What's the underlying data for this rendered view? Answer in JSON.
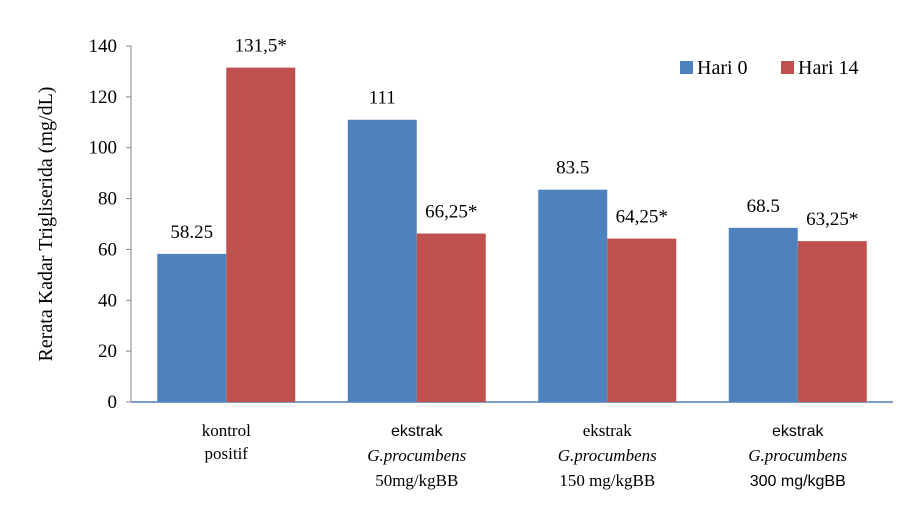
{
  "chart_data": {
    "type": "bar",
    "title": "",
    "xlabel": "",
    "ylabel": "Rerata Kadar Trigliserida (mg/dL)",
    "ylim": [
      0,
      140
    ],
    "yticks": [
      "0",
      "20",
      "40",
      "60",
      "80",
      "100",
      "120",
      "140"
    ],
    "grid": false,
    "legend_position": "top-right",
    "categories": [
      {
        "lines": [
          {
            "text": "kontrol",
            "italic": false
          },
          {
            "text": "positif",
            "italic": false
          }
        ]
      },
      {
        "lines": [
          {
            "text": "ekstrak",
            "italic": false
          },
          {
            "text": "G.procumbens",
            "italic": true
          },
          {
            "text": "50mg/kgBB",
            "italic": false
          }
        ]
      },
      {
        "lines": [
          {
            "text": "ekstrak",
            "italic": false
          },
          {
            "text": "G.procumbens",
            "italic": true
          },
          {
            "text": "150 mg/kgBB",
            "italic": false
          }
        ]
      },
      {
        "lines": [
          {
            "text": "ekstrak",
            "italic": false
          },
          {
            "text": "G.procumbens",
            "italic": true
          },
          {
            "text": "300 mg/kgBB",
            "italic": false
          }
        ]
      }
    ],
    "series": [
      {
        "name": "Hari 0",
        "color": "#4f81bd",
        "values": [
          58.25,
          111,
          83.5,
          68.5
        ],
        "labels": [
          "58.25",
          "111",
          "83.5",
          "68.5"
        ]
      },
      {
        "name": "Hari 14",
        "color": "#c0504d",
        "values": [
          131.5,
          66.25,
          64.25,
          63.25
        ],
        "labels": [
          "131,5*",
          "66,25*",
          "64,25*",
          "63,25*"
        ]
      }
    ]
  }
}
